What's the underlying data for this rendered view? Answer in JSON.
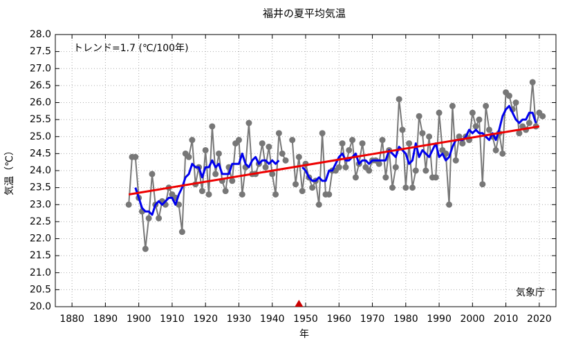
{
  "chart_data": {
    "type": "line",
    "title": "福井の夏平均気温",
    "xlabel": "年",
    "ylabel": "気温（℃）",
    "annotations": [
      "トレンド=1.7 (℃/100年)",
      "気象庁"
    ],
    "xlim": [
      1875,
      2025
    ],
    "ylim": [
      20,
      28
    ],
    "xticks": [
      1880,
      1890,
      1900,
      1910,
      1920,
      1930,
      1940,
      1950,
      1960,
      1970,
      1980,
      1990,
      2000,
      2010,
      2020
    ],
    "yticks": [
      {
        "value": 20,
        "label": "20.0"
      },
      20.5,
      {
        "value": 21,
        "label": "21.0"
      },
      21.5,
      {
        "value": 22,
        "label": "22.0"
      },
      22.5,
      {
        "value": 23,
        "label": "23.0"
      },
      23.5,
      {
        "value": 24,
        "label": "24.0"
      },
      24.5,
      {
        "value": 25,
        "label": "25.0"
      },
      25.5,
      {
        "value": 26,
        "label": "26.0"
      },
      26.5,
      {
        "value": 27,
        "label": "27.0"
      },
      27.5,
      {
        "value": 28,
        "label": "28.0"
      }
    ],
    "grid": true,
    "x": [
      1897,
      1898,
      1899,
      1900,
      1901,
      1902,
      1903,
      1904,
      1905,
      1906,
      1907,
      1908,
      1909,
      1910,
      1911,
      1912,
      1913,
      1914,
      1915,
      1916,
      1917,
      1918,
      1919,
      1920,
      1921,
      1922,
      1923,
      1924,
      1925,
      1926,
      1927,
      1928,
      1929,
      1930,
      1931,
      1932,
      1933,
      1934,
      1935,
      1936,
      1937,
      1938,
      1939,
      1940,
      1941,
      1942,
      1943,
      1944,
      1945,
      1946,
      1947,
      1948,
      1949,
      1950,
      1951,
      1952,
      1953,
      1954,
      1955,
      1956,
      1957,
      1958,
      1959,
      1960,
      1961,
      1962,
      1963,
      1964,
      1965,
      1966,
      1967,
      1968,
      1969,
      1970,
      1971,
      1972,
      1973,
      1974,
      1975,
      1976,
      1977,
      1978,
      1979,
      1980,
      1981,
      1982,
      1983,
      1984,
      1985,
      1986,
      1987,
      1988,
      1989,
      1990,
      1991,
      1992,
      1993,
      1994,
      1995,
      1996,
      1997,
      1998,
      1999,
      2000,
      2001,
      2002,
      2003,
      2004,
      2005,
      2006,
      2007,
      2008,
      2009,
      2010,
      2011,
      2012,
      2013,
      2014,
      2015,
      2016,
      2017,
      2018,
      2019,
      2020,
      2021
    ],
    "series": [
      {
        "color": "#777777",
        "markers": true,
        "width": 2,
        "values": [
          23.0,
          24.4,
          24.4,
          23.2,
          22.8,
          21.7,
          22.6,
          23.9,
          23.0,
          22.6,
          23.1,
          23.0,
          23.5,
          23.3,
          23.2,
          23.0,
          22.2,
          24.5,
          24.4,
          24.9,
          23.6,
          24.1,
          23.4,
          24.6,
          23.3,
          25.3,
          23.9,
          24.5,
          23.7,
          23.4,
          24.1,
          23.7,
          24.8,
          24.9,
          23.3,
          24.1,
          25.4,
          23.9,
          23.9,
          24.2,
          24.8,
          24.1,
          24.7,
          23.9,
          23.3,
          25.1,
          24.5,
          24.3,
          null,
          24.9,
          23.6,
          24.4,
          23.4,
          24.2,
          23.8,
          23.5,
          23.7,
          23.0,
          25.1,
          23.3,
          23.3,
          24.0,
          24.0,
          24.1,
          24.8,
          24.1,
          24.6,
          24.9,
          23.8,
          24.2,
          24.8,
          24.1,
          24.0,
          24.3,
          24.3,
          24.2,
          24.9,
          23.8,
          24.6,
          23.5,
          24.1,
          26.1,
          25.2,
          23.5,
          24.8,
          23.5,
          24.0,
          25.6,
          25.1,
          24.0,
          25.0,
          23.8,
          23.8,
          25.7,
          24.6,
          24.5,
          23.0,
          25.9,
          24.3,
          25.0,
          24.8,
          25.0,
          24.9,
          25.7,
          25.3,
          25.5,
          23.6,
          25.9,
          25.2,
          25.0,
          24.6,
          25.1,
          24.5,
          26.3,
          26.2,
          25.8,
          26.0,
          25.1,
          25.3,
          25.2,
          25.4,
          26.6,
          25.3,
          25.7,
          25.6
        ]
      },
      {
        "color": "#0000ee",
        "markers": false,
        "width": 3,
        "values": [
          null,
          null,
          23.5,
          23.2,
          22.9,
          22.8,
          22.8,
          22.7,
          23.0,
          23.1,
          23.0,
          23.1,
          23.2,
          23.2,
          23.0,
          23.3,
          23.5,
          23.8,
          23.9,
          24.2,
          24.1,
          24.1,
          23.8,
          24.1,
          24.1,
          24.3,
          24.1,
          24.2,
          23.9,
          23.9,
          23.9,
          24.2,
          24.2,
          24.2,
          24.5,
          24.2,
          24.1,
          24.3,
          24.4,
          24.2,
          24.3,
          24.3,
          24.2,
          24.3,
          24.2,
          24.3,
          null,
          null,
          null,
          null,
          null,
          null,
          24.1,
          24.0,
          23.8,
          23.7,
          23.7,
          23.8,
          23.7,
          23.7,
          24.0,
          24.0,
          24.2,
          24.4,
          24.5,
          24.3,
          24.3,
          24.4,
          24.5,
          24.2,
          24.3,
          24.3,
          24.2,
          24.3,
          24.3,
          24.3,
          24.3,
          24.3,
          24.6,
          24.5,
          24.4,
          24.7,
          24.6,
          24.5,
          24.2,
          24.3,
          24.8,
          24.4,
          24.6,
          24.5,
          24.4,
          24.6,
          24.8,
          24.4,
          24.5,
          24.3,
          24.4,
          24.7,
          24.9,
          24.9,
          24.9,
          25.0,
          25.2,
          25.1,
          25.2,
          25.1,
          25.1,
          25.0,
          24.9,
          25.1,
          24.9,
          25.2,
          25.6,
          25.8,
          25.9,
          25.7,
          25.5,
          25.4,
          25.5,
          25.5,
          25.7,
          25.7,
          25.4,
          null,
          null
        ]
      }
    ],
    "trend": {
      "color": "#ee0000",
      "x": [
        1897,
        2020
      ],
      "values": [
        23.3,
        25.3
      ]
    },
    "event_marks": [
      {
        "x": 1948,
        "color": "#cc0000"
      }
    ]
  }
}
